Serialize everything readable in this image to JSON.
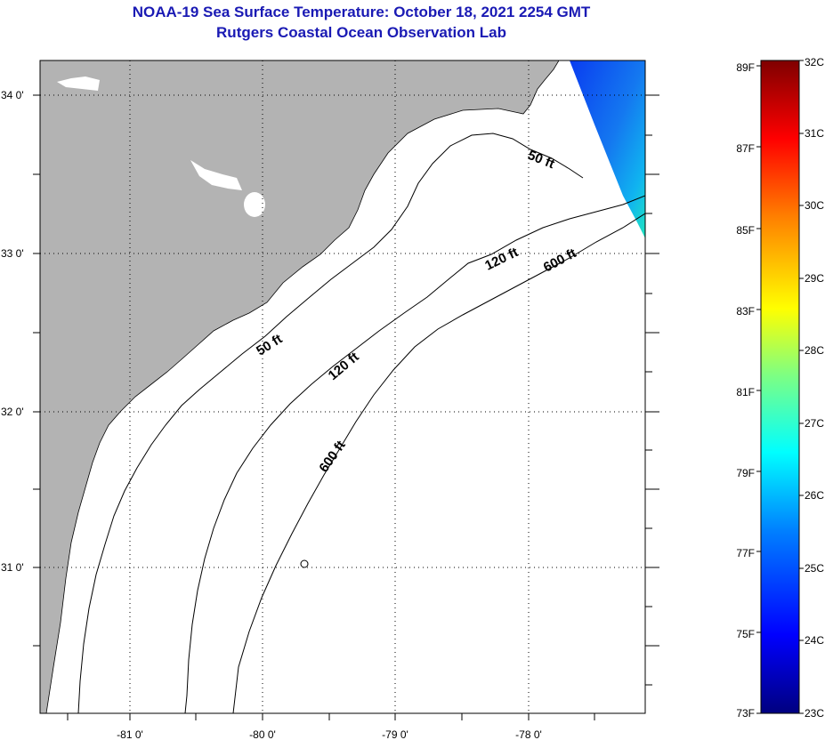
{
  "title": {
    "line1": "NOAA-19 Sea Surface Temperature:  October 18, 2021 2254 GMT",
    "line2": "Rutgers Coastal Ocean Observation Lab"
  },
  "map": {
    "longitude_labels": [
      "-81 0'",
      "-80 0'",
      "-79 0'",
      "-78 0'"
    ],
    "latitude_labels": [
      "34 0'",
      "33 0'",
      "32 0'",
      "31 0'"
    ],
    "depth_contour_labels": [
      "50 ft",
      "50 ft",
      "120 ft",
      "120 ft",
      "600 ft",
      "600 ft"
    ],
    "colors": {
      "land": "#b3b3b3",
      "ocean": "#ffffff",
      "contour": "#000000",
      "grid": "#000000"
    }
  },
  "colorbar": {
    "fahrenheit_labels": [
      "89F",
      "87F",
      "85F",
      "83F",
      "81F",
      "79F",
      "77F",
      "75F",
      "73F"
    ],
    "celsius_labels": [
      "32C",
      "31C",
      "30C",
      "29C",
      "28C",
      "27C",
      "26C",
      "25C",
      "24C",
      "23C"
    ],
    "colors": [
      "#00007f",
      "#0000ff",
      "#0080ff",
      "#00ffff",
      "#80ff80",
      "#ffff00",
      "#ff8000",
      "#ff0000",
      "#7f0000"
    ]
  }
}
